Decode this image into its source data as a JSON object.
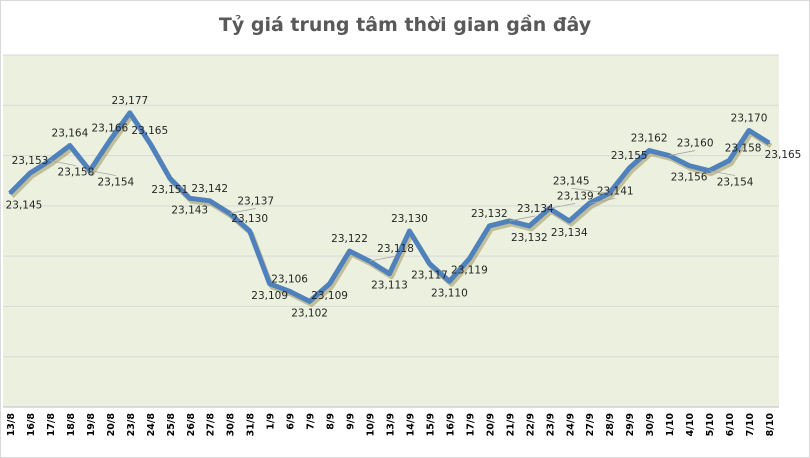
{
  "chart_data": {
    "type": "line",
    "title": "Tỷ giá trung tâm thời gian gần đây",
    "xlabel": "",
    "ylabel": "",
    "categories": [
      "13/8",
      "16/8",
      "17/8",
      "18/8",
      "19/8",
      "20/8",
      "23/8",
      "24/8",
      "25/8",
      "26/8",
      "27/8",
      "30/8",
      "31/8",
      "1/9",
      "6/9",
      "7/9",
      "8/9",
      "9/9",
      "10/9",
      "13/9",
      "14/9",
      "15/9",
      "16/9",
      "17/9",
      "20/9",
      "21/9",
      "22/9",
      "23/9",
      "24/9",
      "27/9",
      "28/9",
      "29/9",
      "30/9",
      "1/10",
      "4/10",
      "5/10",
      "6/10",
      "7/10",
      "8/10"
    ],
    "values": [
      23145,
      23153,
      23158,
      23164,
      23154,
      23166,
      23177,
      23165,
      23151,
      23143,
      23142,
      23137,
      23130,
      23109,
      23106,
      23102,
      23109,
      23122,
      23118,
      23113,
      23130,
      23117,
      23110,
      23119,
      23132,
      23134,
      23132,
      23139,
      23134,
      23141,
      23145,
      23155,
      23162,
      23160,
      23156,
      23154,
      23158,
      23170,
      23165
    ],
    "data_labels": [
      "23,145",
      "23,153",
      "23,158",
      "23,164",
      "23,154",
      "23,166",
      "23,177",
      "23,165",
      "23,151",
      "23,143",
      "23,142",
      "23,137",
      "23,130",
      "23,109",
      "23,106",
      "23,102",
      "23,109",
      "23,122",
      "23,118",
      "23,113",
      "23,130",
      "23,117",
      "23,110",
      "23,119",
      "23,132",
      "23,134",
      "23,132",
      "23,139",
      "23,134",
      "23,141",
      "23,145",
      "23,155",
      "23,162",
      "23,160",
      "23,156",
      "23,154",
      "23,158",
      "23,170",
      "23,165"
    ],
    "ylim": [
      23060,
      23200
    ],
    "grid": true,
    "y_tick_step": 20,
    "y_tick_labels_shown": false,
    "legend": "none",
    "colors": {
      "line": "#4f81bd",
      "plot_background": "#ebf1de",
      "grid": "#d9d9d9"
    }
  }
}
